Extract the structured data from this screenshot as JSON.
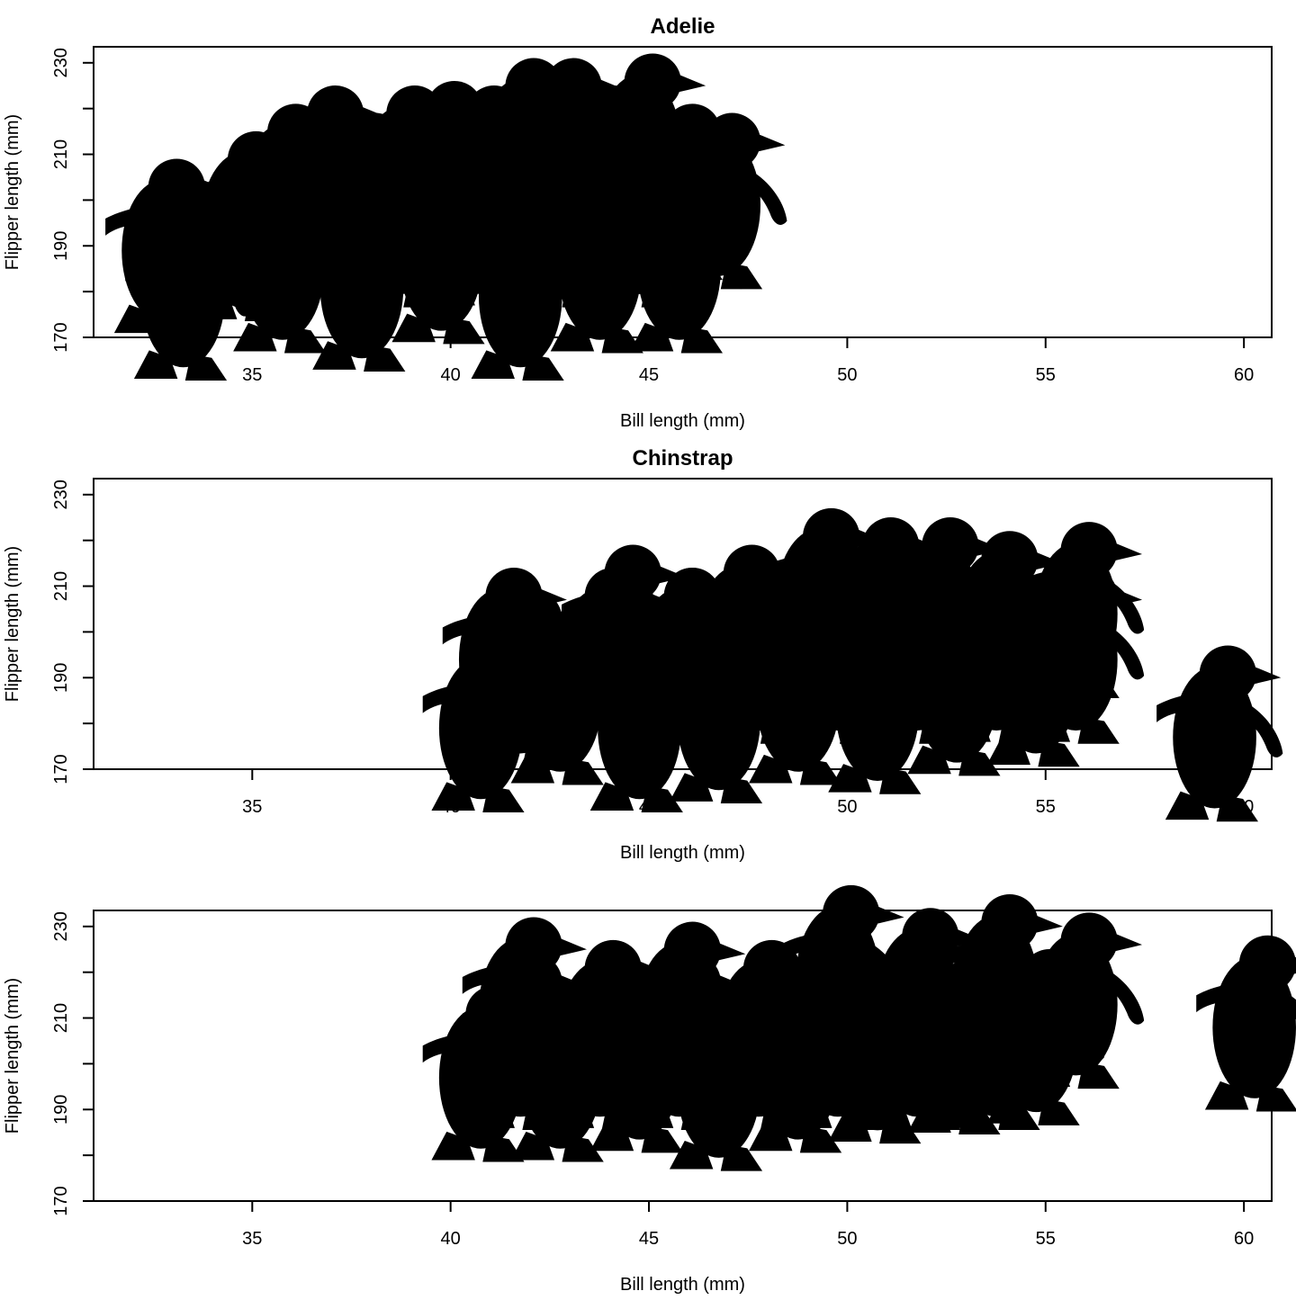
{
  "colors": {
    "ink": "#000000",
    "background": "#ffffff"
  },
  "icons": {
    "marker": "penguin-silhouette-icon"
  },
  "chart_data": [
    {
      "type": "scatter",
      "title": "Adelie",
      "xlabel": "Bill length (mm)",
      "ylabel": "Flipper length (mm)",
      "xlim": [
        31,
        60.7
      ],
      "ylim": [
        170,
        233.5
      ],
      "xticks": [
        35,
        40,
        45,
        50,
        55,
        60
      ],
      "yticks": [
        170,
        180,
        190,
        200,
        210,
        220,
        230
      ],
      "ytick_labels": [
        "170",
        "",
        "190",
        "",
        "210",
        "",
        "230"
      ],
      "x": [
        33,
        35,
        36,
        37,
        38,
        39,
        40,
        41,
        42,
        43,
        44,
        45,
        46,
        47,
        33.5,
        36,
        38,
        40,
        42,
        44,
        46,
        37,
        39,
        41,
        43,
        35,
        45
      ],
      "y": [
        190,
        193,
        202,
        206,
        200,
        206,
        207,
        206,
        212,
        212,
        206,
        213,
        202,
        200,
        180,
        186,
        182,
        188,
        180,
        186,
        186,
        196,
        196,
        196,
        196,
        196,
        196
      ]
    },
    {
      "type": "scatter",
      "title": "Chinstrap",
      "xlabel": "Bill length (mm)",
      "ylabel": "Flipper length (mm)",
      "xlim": [
        31,
        60.7
      ],
      "ylim": [
        170,
        233.5
      ],
      "xticks": [
        35,
        40,
        45,
        50,
        55,
        60
      ],
      "yticks": [
        170,
        180,
        190,
        200,
        210,
        220,
        230
      ],
      "ytick_labels": [
        "170",
        "",
        "190",
        "",
        "210",
        "",
        "230"
      ],
      "x": [
        42,
        44.5,
        46,
        47.5,
        49.5,
        51,
        52.5,
        54,
        56,
        59.5,
        41,
        43,
        45,
        47,
        49,
        51,
        53,
        55,
        41.5,
        44,
        46,
        48,
        50,
        52,
        54,
        56
      ],
      "y": [
        190,
        200,
        195,
        200,
        208,
        206,
        206,
        203,
        205,
        178,
        180,
        186,
        180,
        182,
        186,
        184,
        188,
        190,
        195,
        195,
        195,
        195,
        195,
        195,
        195,
        195
      ]
    },
    {
      "type": "scatter",
      "title": "",
      "xlabel": "Bill length (mm)",
      "ylabel": "Flipper length (mm)",
      "xlim": [
        31,
        60.7
      ],
      "ylim": [
        170,
        233.5
      ],
      "xticks": [
        35,
        40,
        45,
        50,
        55,
        60
      ],
      "yticks": [
        170,
        180,
        190,
        200,
        210,
        220,
        230
      ],
      "ytick_labels": [
        "170",
        "",
        "190",
        "",
        "210",
        "",
        "230"
      ],
      "x": [
        42,
        44,
        46,
        48,
        50,
        52,
        54,
        56,
        60.5,
        41,
        43,
        45,
        47,
        49,
        51,
        53,
        55,
        42,
        44,
        46,
        48,
        50,
        52,
        54
      ],
      "y": [
        213,
        208,
        212,
        208,
        220,
        215,
        218,
        214,
        209,
        198,
        198,
        200,
        196,
        200,
        202,
        204,
        206,
        205,
        205,
        205,
        205,
        205,
        205,
        205
      ]
    }
  ]
}
